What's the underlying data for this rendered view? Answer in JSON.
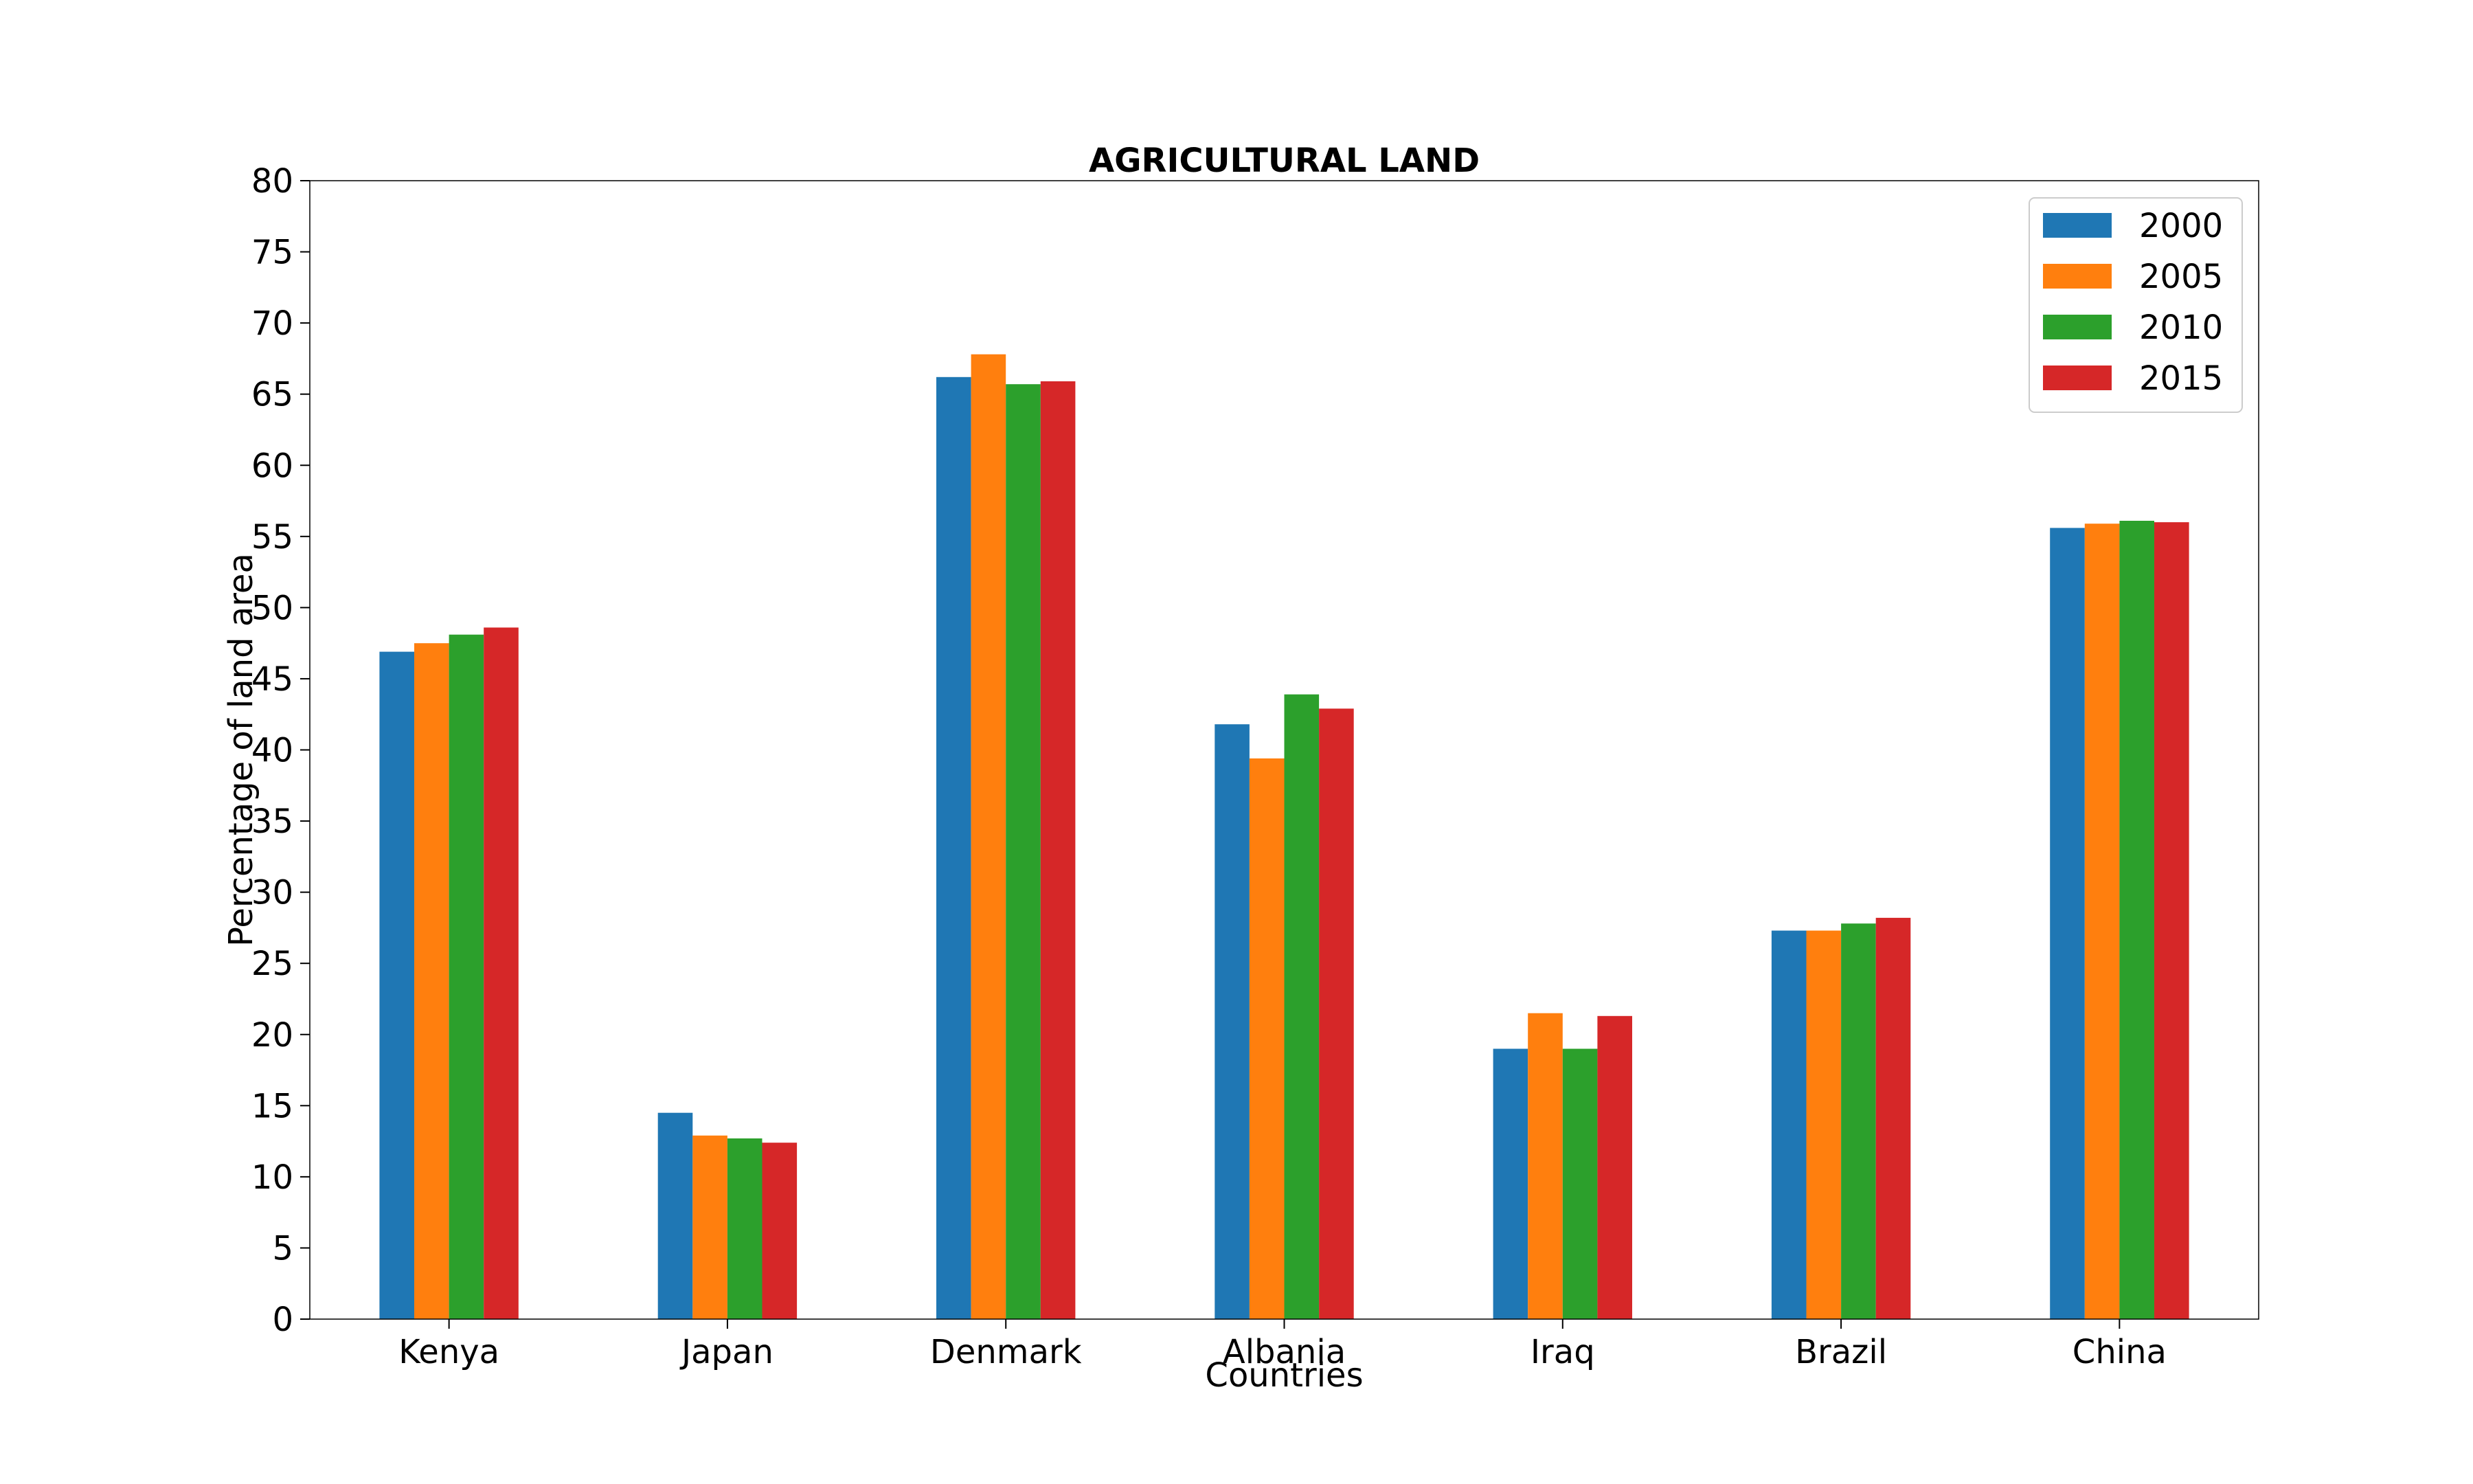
{
  "chart_data": {
    "type": "bar",
    "title": "AGRICULTURAL LAND",
    "xlabel": "Countries",
    "ylabel": "Percentage of land area",
    "ylim": [
      0,
      80
    ],
    "yticks": [
      0,
      5,
      10,
      15,
      20,
      25,
      30,
      35,
      40,
      45,
      50,
      55,
      60,
      65,
      70,
      75,
      80
    ],
    "categories": [
      "Kenya",
      "Japan",
      "Denmark",
      "Albania",
      "Iraq",
      "Brazil",
      "China"
    ],
    "series": [
      {
        "name": "2000",
        "color": "#1f77b4",
        "values": [
          46.9,
          14.5,
          66.2,
          41.8,
          19.0,
          27.3,
          55.6
        ]
      },
      {
        "name": "2005",
        "color": "#ff7f0e",
        "values": [
          47.5,
          12.9,
          67.8,
          39.4,
          21.5,
          27.3,
          55.9
        ]
      },
      {
        "name": "2010",
        "color": "#2ca02c",
        "values": [
          48.1,
          12.7,
          65.7,
          43.9,
          19.0,
          27.8,
          56.1
        ]
      },
      {
        "name": "2015",
        "color": "#d62728",
        "values": [
          48.6,
          12.4,
          65.9,
          42.9,
          21.3,
          28.2,
          56.0
        ]
      }
    ],
    "grid": false,
    "legend_position": "top-right"
  }
}
